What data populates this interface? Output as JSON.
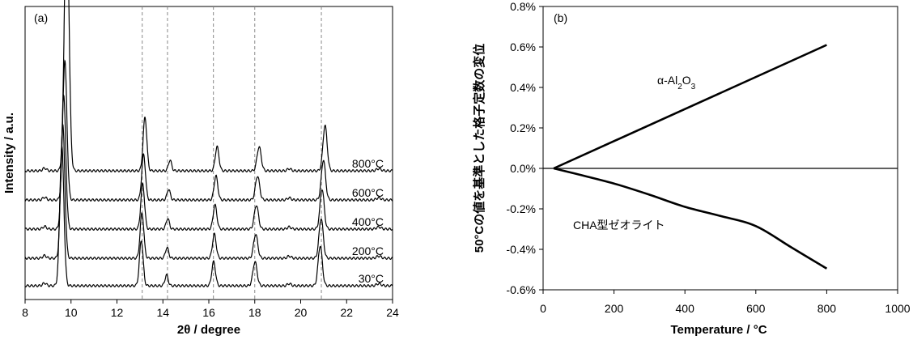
{
  "chart_data": [
    {
      "type": "line",
      "panel_label": "(a)",
      "xlabel": "2θ / degree",
      "ylabel": "Intensity / a.u.",
      "xlim": [
        8,
        24
      ],
      "x_ticks": [
        8,
        10,
        12,
        14,
        16,
        18,
        20,
        22,
        24
      ],
      "y_ticks": [],
      "grid": false,
      "reference_lines_x": [
        13.1,
        14.2,
        16.2,
        18.0,
        20.9
      ],
      "series": [
        {
          "name": "800°C",
          "peaks": [
            {
              "x": 9.81,
              "h": 1.0,
              "w": 0.1
            },
            {
              "x": 13.22,
              "h": 0.2,
              "w": 0.08
            },
            {
              "x": 14.31,
              "h": 0.04,
              "w": 0.07
            },
            {
              "x": 16.36,
              "h": 0.09,
              "w": 0.08
            },
            {
              "x": 18.19,
              "h": 0.09,
              "w": 0.09
            },
            {
              "x": 21.06,
              "h": 0.17,
              "w": 0.09
            }
          ]
        },
        {
          "name": "600°C",
          "peaks": [
            {
              "x": 9.73,
              "h": 0.52,
              "w": 0.09
            },
            {
              "x": 13.16,
              "h": 0.17,
              "w": 0.08
            },
            {
              "x": 14.25,
              "h": 0.04,
              "w": 0.07
            },
            {
              "x": 16.31,
              "h": 0.09,
              "w": 0.08
            },
            {
              "x": 18.12,
              "h": 0.09,
              "w": 0.09
            },
            {
              "x": 20.99,
              "h": 0.15,
              "w": 0.09
            }
          ]
        },
        {
          "name": "400°C",
          "peaks": [
            {
              "x": 9.68,
              "h": 0.5,
              "w": 0.09
            },
            {
              "x": 13.12,
              "h": 0.17,
              "w": 0.08
            },
            {
              "x": 14.21,
              "h": 0.04,
              "w": 0.07
            },
            {
              "x": 16.27,
              "h": 0.09,
              "w": 0.08
            },
            {
              "x": 18.07,
              "h": 0.09,
              "w": 0.09
            },
            {
              "x": 20.93,
              "h": 0.15,
              "w": 0.09
            }
          ]
        },
        {
          "name": "200°C",
          "peaks": [
            {
              "x": 9.64,
              "h": 0.5,
              "w": 0.09
            },
            {
              "x": 13.09,
              "h": 0.17,
              "w": 0.08
            },
            {
              "x": 14.18,
              "h": 0.04,
              "w": 0.07
            },
            {
              "x": 16.24,
              "h": 0.09,
              "w": 0.08
            },
            {
              "x": 18.04,
              "h": 0.09,
              "w": 0.09
            },
            {
              "x": 20.89,
              "h": 0.15,
              "w": 0.09
            }
          ]
        },
        {
          "name": "30°C",
          "peaks": [
            {
              "x": 9.6,
              "h": 0.52,
              "w": 0.09
            },
            {
              "x": 13.06,
              "h": 0.17,
              "w": 0.08
            },
            {
              "x": 14.16,
              "h": 0.04,
              "w": 0.07
            },
            {
              "x": 16.21,
              "h": 0.09,
              "w": 0.08
            },
            {
              "x": 18.01,
              "h": 0.09,
              "w": 0.09
            },
            {
              "x": 20.85,
              "h": 0.15,
              "w": 0.09
            }
          ]
        }
      ]
    },
    {
      "type": "line",
      "panel_label": "(b)",
      "xlabel": "Temperature / °C",
      "ylabel": "50°Cの値を基準とした格子定数の変位",
      "xlim": [
        0,
        1000
      ],
      "ylim": [
        -0.6,
        0.8
      ],
      "x_ticks": [
        0,
        200,
        400,
        600,
        800,
        1000
      ],
      "y_ticks": [
        -0.6,
        -0.4,
        -0.2,
        0.0,
        0.2,
        0.4,
        0.6,
        0.8
      ],
      "y_tick_labels": [
        "-0.6%",
        "-0.4%",
        "-0.2%",
        "0.0%",
        "0.2%",
        "0.4%",
        "0.6%",
        "0.8%"
      ],
      "grid": false,
      "series": [
        {
          "name": "α-Al2O3",
          "x": [
            30,
            800
          ],
          "y": [
            0.0,
            0.61
          ]
        },
        {
          "name": "CHA型ゼオライト",
          "x": [
            30,
            100,
            200,
            300,
            400,
            500,
            600,
            700,
            800
          ],
          "y": [
            0.0,
            -0.03,
            -0.075,
            -0.13,
            -0.19,
            -0.235,
            -0.285,
            -0.39,
            -0.495
          ]
        }
      ]
    }
  ]
}
